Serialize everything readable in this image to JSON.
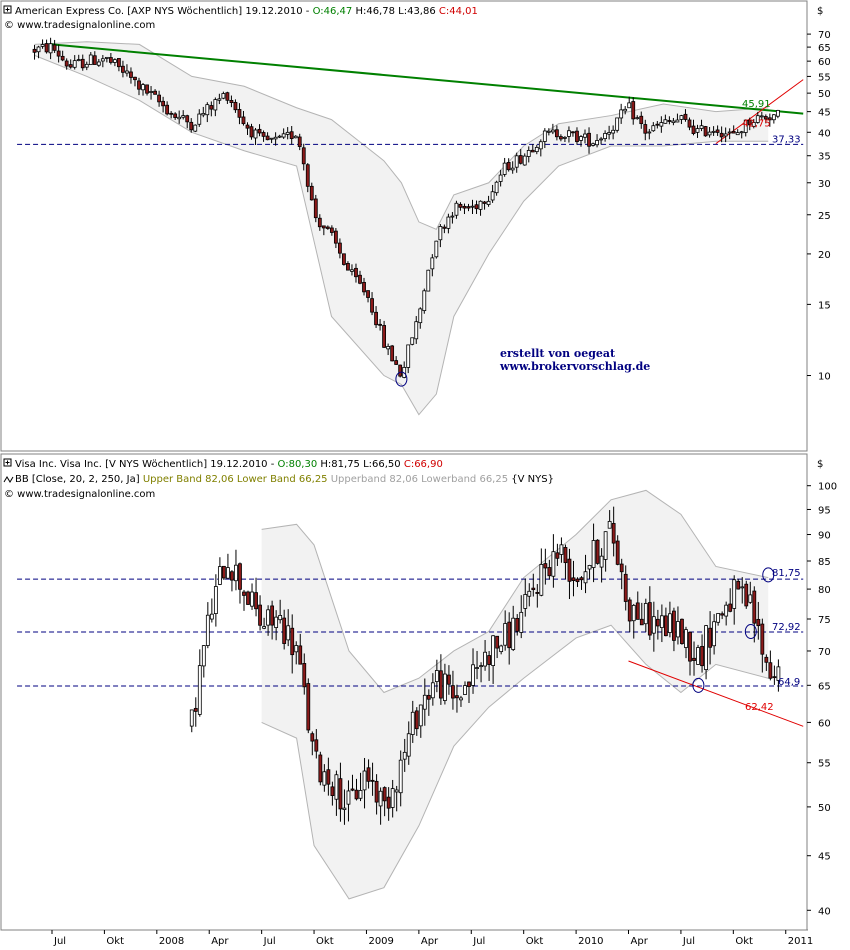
{
  "colors": {
    "up_candle": "#ffffff",
    "down_candle": "#8b1a1a",
    "wick": "#000000",
    "band_fill": "#f2f2f2",
    "band_line": "#b4b4b4",
    "trend_green": "#008000",
    "trend_red": "#e00000",
    "support_line": "#000080",
    "label_green": "#008000",
    "label_red": "#e00000",
    "label_navy": "#000080",
    "header_red": "#d00000",
    "header_green": "#008000",
    "header_olive": "#808000",
    "header_gray": "#a0a0a0"
  },
  "x_axis": {
    "labels": [
      "Jul",
      "Okt",
      "2008",
      "Apr",
      "Jul",
      "Okt",
      "2009",
      "Apr",
      "Jul",
      "Okt",
      "2010",
      "Apr",
      "Jul",
      "Okt",
      "2011"
    ]
  },
  "panels": [
    {
      "id": "axp",
      "header": {
        "icon": "expand-icon",
        "name": "American Express Co. [AXP NYS  Wöchentlich] 19.12.2010 - ",
        "open": "O:46,47",
        "high_low": " H:46,78 L:43,86 ",
        "close": "C:44,01",
        "source": "© www.tradesignalonline.com"
      },
      "currency": "$",
      "credit_line1": "erstellt von oegeat",
      "credit_line2": "www.brokervorschlag.de",
      "price_labels": [
        {
          "text": "45,91",
          "value": 45.91,
          "color": "green"
        },
        {
          "text": "42,75",
          "value": 42.75,
          "color": "red"
        },
        {
          "text": "37,33",
          "value": 37.33,
          "color": "navy"
        }
      ]
    },
    {
      "id": "visa",
      "header": {
        "icon": "expand-icon",
        "name": "Visa Inc. Visa Inc. [V NYS  Wöchentlich] 19.12.2010 - ",
        "open": "O:80,30",
        "high_low": " H:81,75 L:66,50 ",
        "close": "C:66,90",
        "source": "© www.tradesignalonline.com",
        "indicator_prefix": "BB [Close, 20, 2, 250, Ja] ",
        "indicator_bands": "Upper Band 82,06 Lower Band 66,25 ",
        "indicator_ghost": "Upperband 82,06 Lowerband 66,25 ",
        "indicator_suffix": "{V NYS}"
      },
      "currency": "$",
      "price_labels": [
        {
          "text": "81,75",
          "value": 81.75,
          "color": "navy"
        },
        {
          "text": "72,92",
          "value": 72.92,
          "color": "navy"
        },
        {
          "text": "64,9",
          "value": 64.9,
          "color": "navy"
        },
        {
          "text": "62,42",
          "value": 62.42,
          "color": "red"
        }
      ]
    }
  ],
  "chart_data": [
    {
      "type": "candlestick",
      "title": "American Express Co. [AXP NYS  Wöchentlich]",
      "scale": "log",
      "ylim": [
        7.5,
        75
      ],
      "y_ticks": [
        10,
        15,
        20,
        25,
        30,
        35,
        40,
        45,
        50,
        55,
        60,
        65,
        70
      ],
      "series": [
        {
          "name": "AXP",
          "anchors": [
            [
              "2007-06",
              64
            ],
            [
              "2007-07",
              65
            ],
            [
              "2007-08",
              58
            ],
            [
              "2007-09",
              60
            ],
            [
              "2007-10",
              61
            ],
            [
              "2007-11",
              57
            ],
            [
              "2007-12",
              52
            ],
            [
              "2008-01",
              48
            ],
            [
              "2008-02",
              44
            ],
            [
              "2008-03",
              42
            ],
            [
              "2008-04",
              46
            ],
            [
              "2008-05",
              50
            ],
            [
              "2008-06",
              42
            ],
            [
              "2008-07",
              38
            ],
            [
              "2008-08",
              38
            ],
            [
              "2008-09",
              40
            ],
            [
              "2008-10",
              25
            ],
            [
              "2008-11",
              22
            ],
            [
              "2008-12",
              18
            ],
            [
              "2009-01",
              16
            ],
            [
              "2009-02",
              12
            ],
            [
              "2009-03",
              10
            ],
            [
              "2009-04",
              14
            ],
            [
              "2009-05",
              22
            ],
            [
              "2009-06",
              26
            ],
            [
              "2009-07",
              26
            ],
            [
              "2009-08",
              28
            ],
            [
              "2009-09",
              33
            ],
            [
              "2009-10",
              35
            ],
            [
              "2009-11",
              39
            ],
            [
              "2009-12",
              40
            ],
            [
              "2010-01",
              39
            ],
            [
              "2010-02",
              38
            ],
            [
              "2010-03",
              41
            ],
            [
              "2010-04",
              46
            ],
            [
              "2010-05",
              40
            ],
            [
              "2010-06",
              42
            ],
            [
              "2010-07",
              43
            ],
            [
              "2010-08",
              40
            ],
            [
              "2010-09",
              41
            ],
            [
              "2010-10",
              39
            ],
            [
              "2010-11",
              43
            ],
            [
              "2010-12",
              44
            ]
          ]
        }
      ],
      "bollinger": [
        [
          "2007-06",
          66,
          62
        ],
        [
          "2007-09",
          67,
          55
        ],
        [
          "2007-12",
          66,
          48
        ],
        [
          "2008-03",
          55,
          40
        ],
        [
          "2008-06",
          52,
          36
        ],
        [
          "2008-09",
          46,
          33
        ],
        [
          "2008-11",
          43,
          14
        ],
        [
          "2009-02",
          34,
          10
        ],
        [
          "2009-03",
          30,
          9.5
        ],
        [
          "2009-04",
          24,
          8
        ],
        [
          "2009-05",
          23,
          9
        ],
        [
          "2009-06",
          28,
          14
        ],
        [
          "2009-08",
          30,
          20
        ],
        [
          "2009-10",
          37,
          27
        ],
        [
          "2009-12",
          42,
          33
        ],
        [
          "2010-03",
          44,
          37
        ],
        [
          "2010-06",
          47,
          37
        ],
        [
          "2010-09",
          45,
          38
        ],
        [
          "2010-12",
          46,
          38
        ]
      ],
      "trend_lines": [
        {
          "color": "green",
          "from": [
            "2007-07",
            66
          ],
          "to": [
            "2011-02",
            44.5
          ]
        },
        {
          "color": "red",
          "from": [
            "2010-09",
            37.5
          ],
          "to": [
            "2011-02",
            54
          ]
        },
        {
          "color": "navy_dashed",
          "from": [
            "2007-05",
            37.33
          ],
          "to": [
            "2011-02",
            37.33
          ]
        }
      ],
      "markers": [
        [
          "2009-03",
          9.8
        ]
      ]
    },
    {
      "type": "candlestick",
      "title": "Visa Inc. Visa Inc. [V NYS  Wöchentlich]",
      "scale": "log",
      "ylim": [
        38.5,
        103
      ],
      "y_ticks": [
        40,
        45,
        50,
        55,
        60,
        65,
        70,
        75,
        80,
        85,
        90,
        95,
        100
      ],
      "series": [
        {
          "name": "V",
          "anchors": [
            [
              "2008-03",
              60
            ],
            [
              "2008-04",
              75
            ],
            [
              "2008-05",
              86
            ],
            [
              "2008-06",
              80
            ],
            [
              "2008-07",
              74
            ],
            [
              "2008-08",
              75
            ],
            [
              "2008-09",
              70
            ],
            [
              "2008-10",
              55
            ],
            [
              "2008-11",
              53
            ],
            [
              "2008-12",
              50
            ],
            [
              "2009-01",
              54
            ],
            [
              "2009-02",
              50
            ],
            [
              "2009-03",
              55
            ],
            [
              "2009-04",
              62
            ],
            [
              "2009-05",
              66
            ],
            [
              "2009-06",
              63
            ],
            [
              "2009-07",
              66
            ],
            [
              "2009-08",
              70
            ],
            [
              "2009-09",
              72
            ],
            [
              "2009-10",
              76
            ],
            [
              "2009-11",
              83
            ],
            [
              "2009-12",
              87
            ],
            [
              "2010-01",
              82
            ],
            [
              "2010-02",
              86
            ],
            [
              "2010-03",
              91
            ],
            [
              "2010-04",
              77
            ],
            [
              "2010-05",
              75
            ],
            [
              "2010-06",
              74
            ],
            [
              "2010-07",
              73
            ],
            [
              "2010-08",
              69
            ],
            [
              "2010-09",
              75
            ],
            [
              "2010-10",
              79
            ],
            [
              "2010-11",
              77
            ],
            [
              "2010-12",
              67
            ]
          ]
        }
      ],
      "bollinger": [
        [
          "2008-07",
          91,
          60
        ],
        [
          "2008-09",
          92,
          58
        ],
        [
          "2008-10",
          88,
          46
        ],
        [
          "2008-12",
          70,
          41
        ],
        [
          "2009-02",
          64,
          42
        ],
        [
          "2009-04",
          66,
          48
        ],
        [
          "2009-06",
          70,
          57
        ],
        [
          "2009-08",
          73,
          62
        ],
        [
          "2009-10",
          82,
          66
        ],
        [
          "2010-01",
          90,
          72
        ],
        [
          "2010-03",
          97,
          74
        ],
        [
          "2010-05",
          99,
          68
        ],
        [
          "2010-07",
          94,
          64
        ],
        [
          "2010-09",
          84,
          68
        ],
        [
          "2010-12",
          82,
          66
        ]
      ],
      "trend_lines": [
        {
          "color": "red",
          "from": [
            "2010-04",
            68.5
          ],
          "to": [
            "2011-02",
            59.5
          ]
        },
        {
          "color": "navy_dashed",
          "from": [
            "2007-05",
            81.75
          ],
          "to": [
            "2011-02",
            81.75
          ]
        },
        {
          "color": "navy_dashed",
          "from": [
            "2007-05",
            72.92
          ],
          "to": [
            "2011-02",
            72.92
          ]
        },
        {
          "color": "navy_dashed",
          "from": [
            "2007-05",
            64.9
          ],
          "to": [
            "2011-02",
            64.9
          ]
        }
      ],
      "markers": [
        [
          "2010-08",
          65.0
        ],
        [
          "2010-11",
          73.0
        ],
        [
          "2010-12",
          82.5
        ]
      ]
    }
  ]
}
